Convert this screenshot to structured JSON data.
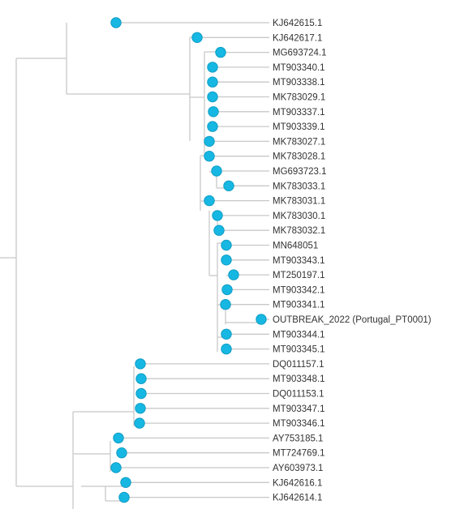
{
  "style": {
    "branch_color": "#c8c8c8",
    "node_fill": "#16b8e3",
    "node_stroke": "#0e9cc4",
    "label_color": "#333333"
  },
  "tips": [
    "KJ642615.1",
    "KJ642617.1",
    "MG693724.1",
    "MT903340.1",
    "MT903338.1",
    "MK783029.1",
    "MT903337.1",
    "MT903339.1",
    "MK783027.1",
    "MK783028.1",
    "MG693723.1",
    "MK783033.1",
    "MK783031.1",
    "MK783030.1",
    "MK783032.1",
    "MN648051",
    "MT903343.1",
    "MT250197.1",
    "MT903342.1",
    "MT903341.1",
    "OUTBREAK_2022 (Portugal_PT0001)",
    "MT903344.1",
    "MT903345.1",
    "DQ011157.1",
    "MT903348.1",
    "DQ011153.1",
    "MT903347.1",
    "MT903346.1",
    "AY753185.1",
    "MT724769.1",
    "AY603973.1",
    "KJ642616.1",
    "KJ642614.1"
  ]
}
